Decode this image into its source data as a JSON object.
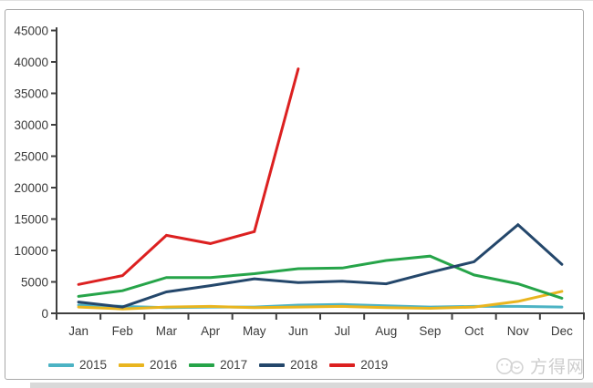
{
  "chart_data": {
    "type": "line",
    "title": "",
    "xlabel": "",
    "ylabel": "",
    "categories": [
      "Jan",
      "Feb",
      "Mar",
      "Apr",
      "May",
      "Jun",
      "Jul",
      "Aug",
      "Sep",
      "Oct",
      "Nov",
      "Dec"
    ],
    "y_ticks": [
      0,
      5000,
      10000,
      15000,
      20000,
      25000,
      30000,
      35000,
      40000,
      45000
    ],
    "ylim": [
      0,
      45000
    ],
    "grid": false,
    "legend_position": "bottom",
    "series": [
      {
        "name": "2015",
        "color": "#4cb3c4",
        "values": [
          1300,
          1100,
          900,
          1000,
          1000,
          1300,
          1400,
          1200,
          1000,
          1100,
          1100,
          1000
        ]
      },
      {
        "name": "2016",
        "color": "#e9b51f",
        "values": [
          1000,
          700,
          1000,
          1100,
          900,
          1000,
          1100,
          900,
          800,
          1000,
          1900,
          3500
        ]
      },
      {
        "name": "2017",
        "color": "#26a449",
        "values": [
          2700,
          3600,
          5700,
          5700,
          6300,
          7100,
          7200,
          8400,
          9100,
          6100,
          4700,
          2400
        ]
      },
      {
        "name": "2018",
        "color": "#24476b",
        "values": [
          1800,
          1000,
          3400,
          4400,
          5500,
          4900,
          5100,
          4700,
          6500,
          8200,
          14100,
          7800
        ]
      },
      {
        "name": "2019",
        "color": "#dc2020",
        "values": [
          4600,
          6000,
          12400,
          11100,
          13000,
          38900
        ]
      }
    ]
  },
  "watermark": {
    "text": "方得网"
  }
}
